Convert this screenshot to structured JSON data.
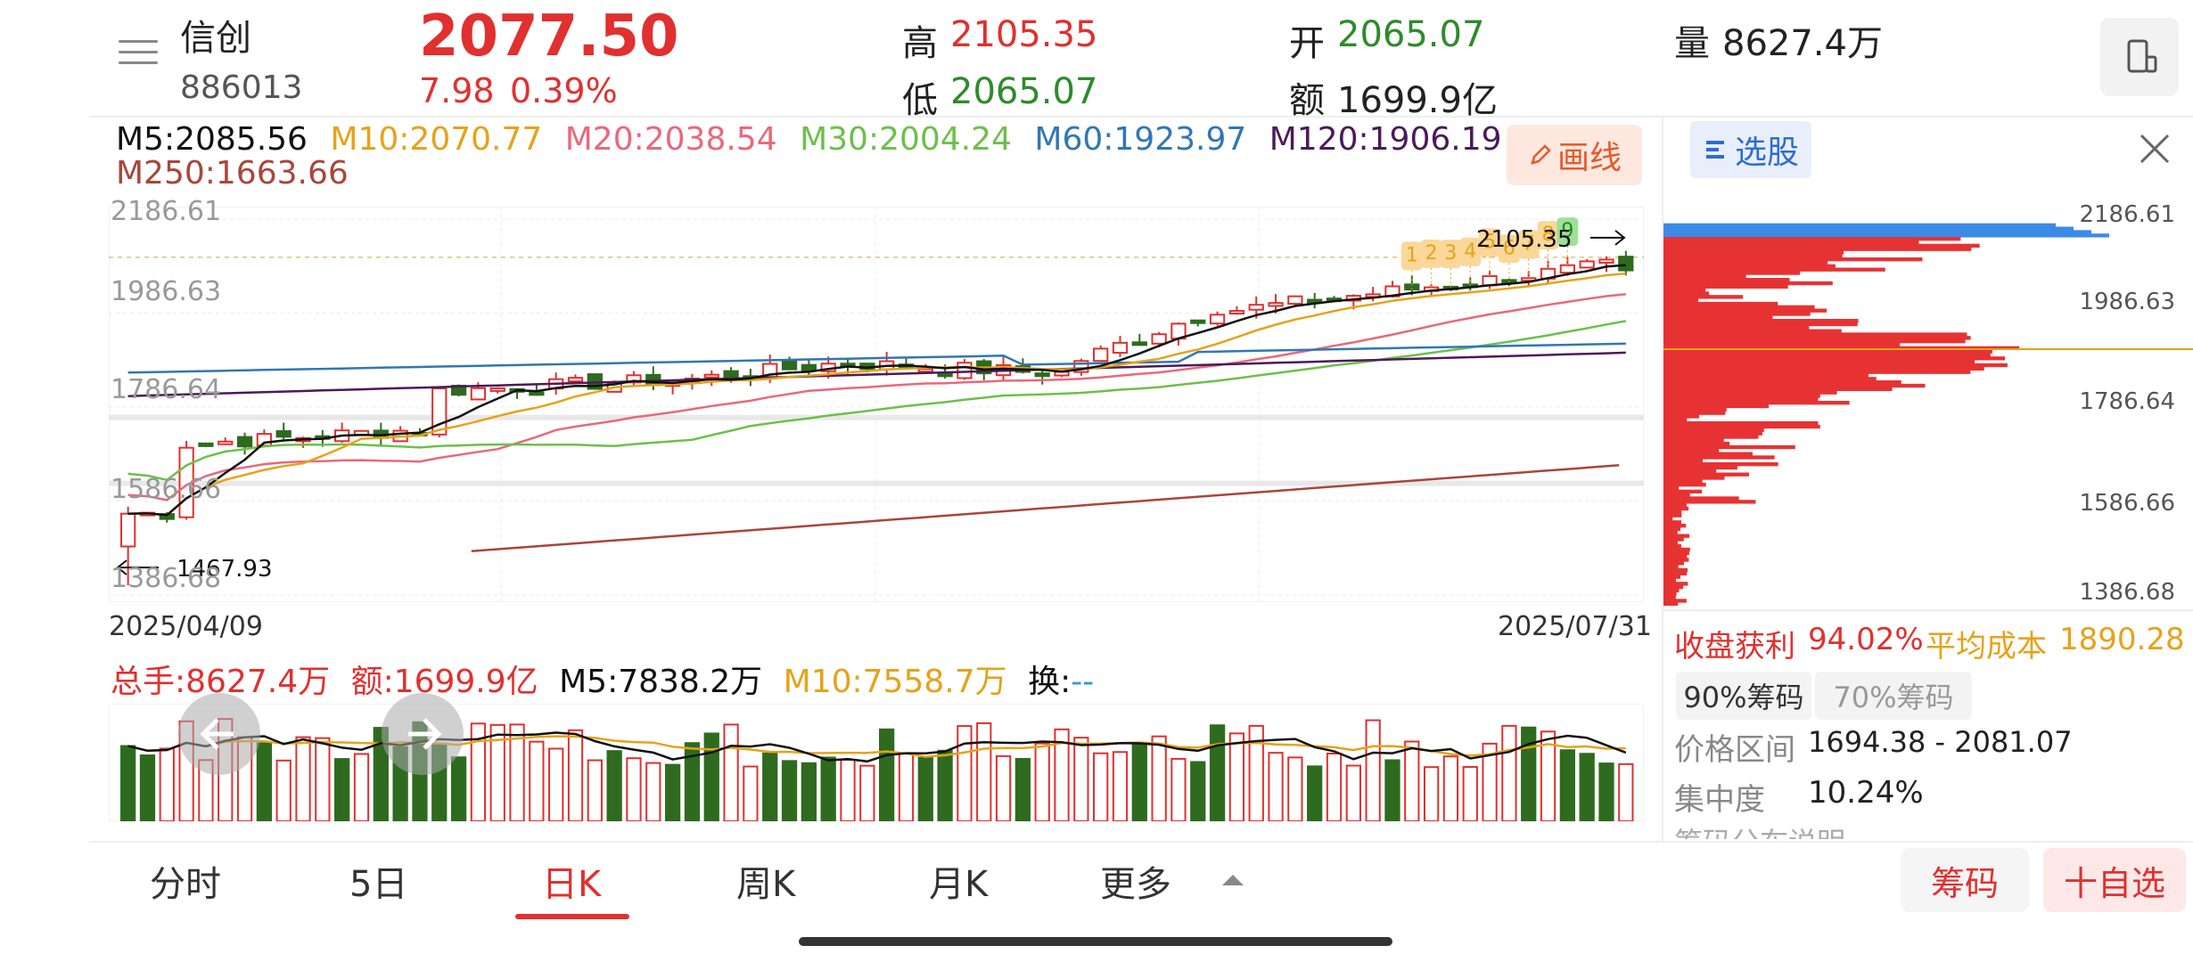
{
  "header": {
    "name": "信创",
    "code": "886013",
    "price": "2077.50",
    "change": "7.98",
    "change_pct": "0.39%",
    "high_label": "高",
    "high": "2105.35",
    "low_label": "低",
    "low": "2065.07",
    "open_label": "开",
    "open": "2065.07",
    "amount_label": "额",
    "amount": "1699.9亿",
    "volume_label": "量",
    "volume": "8627.4万"
  },
  "ma_legend": {
    "m5": "M5:2085.56",
    "m10": "M10:2070.77",
    "m20": "M20:2038.54",
    "m30": "M30:2004.24",
    "m60": "M60:1923.97",
    "m120": "M120:1906.19",
    "m250": "M250:1663.66"
  },
  "draw_button": "画线",
  "kline": {
    "y_ticks": [
      "2186.61",
      "1986.63",
      "1786.64",
      "1586.66",
      "1386.68"
    ],
    "date_start": "2025/04/09",
    "date_end": "2025/07/31",
    "max_label": "2105.35",
    "min_label": "1467.93",
    "count_labels": [
      "1",
      "2",
      "3",
      "4",
      "5",
      "6",
      "7",
      "8",
      "9"
    ]
  },
  "volume_panel": {
    "total": "总手:8627.4万",
    "amount": "额:1699.9亿",
    "m5": "M5:7838.2万",
    "m10": "M10:7558.7万",
    "turnover_label": "换:",
    "turnover_value": "--"
  },
  "chip_panel": {
    "title": "选股",
    "y_ticks": [
      "2186.61",
      "1986.63",
      "1786.64",
      "1586.66",
      "1386.68"
    ],
    "profit_label": "收盘获利",
    "profit_value": "94.02%",
    "avg_cost_label": "平均成本",
    "avg_cost_value": "1890.28",
    "tab_90": "90%筹码",
    "tab_70": "70%筹码",
    "range_label": "价格区间",
    "range_value": "1694.38 - 2081.07",
    "concentration_label": "集中度",
    "concentration_value": "10.24%",
    "explain_label": "筹码分布说明"
  },
  "tabs": [
    "分时",
    "5日",
    "日K",
    "周K",
    "月K",
    "更多"
  ],
  "active_tab": "日K",
  "buttons": {
    "chips": "筹码",
    "add_watch": "十自选"
  },
  "colors": {
    "up": "#e0302f",
    "down": "#2e6b1f",
    "m5": "#111111",
    "m10": "#e6a21a",
    "m20": "#e8697a",
    "m30": "#6cc04a",
    "m60": "#2f77b5",
    "m120": "#4b1a58",
    "m250": "#a8463a"
  },
  "icons": {
    "menu": "menu-icon",
    "phone": "phone-rotate-icon",
    "close": "close-icon",
    "pencil": "pencil-icon",
    "select": "list-icon",
    "arrow_left": "arrow-left-icon",
    "arrow_right": "arrow-right-icon",
    "caret_up": "caret-up-icon"
  }
}
